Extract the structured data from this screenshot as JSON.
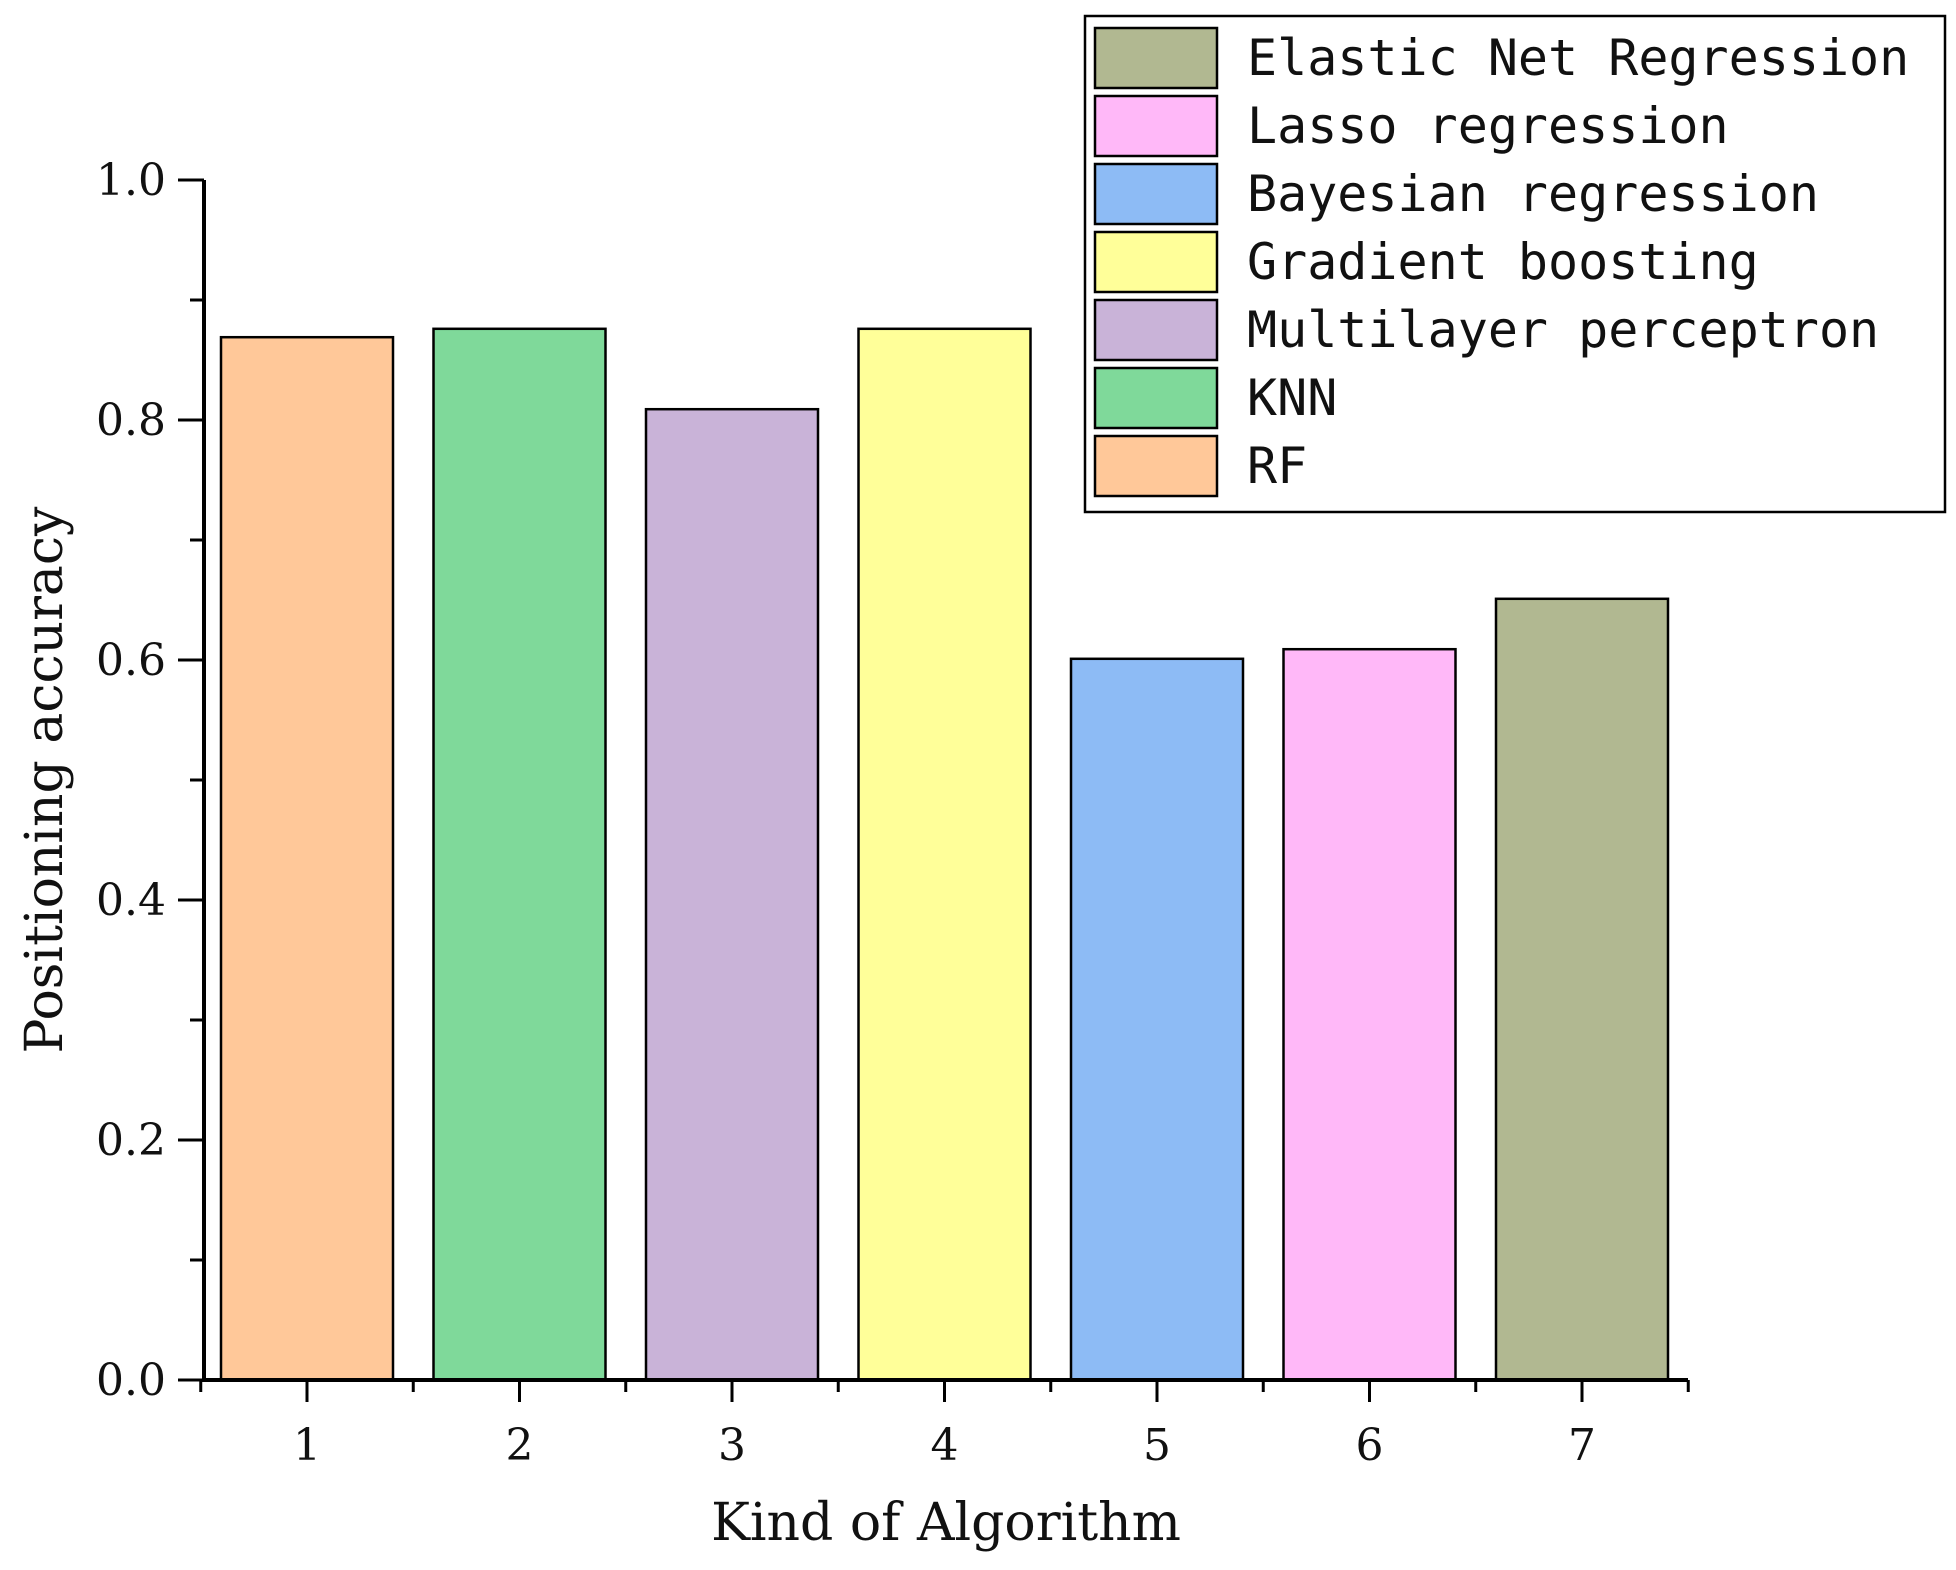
{
  "chart_data": {
    "type": "bar",
    "categories": [
      "1",
      "2",
      "3",
      "4",
      "5",
      "6",
      "7"
    ],
    "values": [
      0.869,
      0.876,
      0.809,
      0.876,
      0.601,
      0.609,
      0.651
    ],
    "bar_colors": [
      "#FFC899",
      "#7FD99A",
      "#C9B3D8",
      "#FFFF99",
      "#8DBBF5",
      "#FFB8F8",
      "#B1B891"
    ],
    "xlabel": "Kind of Algorithm",
    "ylabel": "Positioning accuracy",
    "ylim": [
      0,
      1.0
    ],
    "yticks": [
      "0.0",
      "0.2",
      "0.4",
      "0.6",
      "0.8",
      "1.0"
    ],
    "grid": false,
    "legend_position": "top-right",
    "legend": [
      {
        "label": "Elastic Net Regression",
        "color": "#B1B891"
      },
      {
        "label": "Lasso regression",
        "color": "#FFB8F8"
      },
      {
        "label": "Bayesian regression",
        "color": "#8DBBF5"
      },
      {
        "label": "Gradient boosting",
        "color": "#FFFF99"
      },
      {
        "label": "Multilayer perceptron",
        "color": "#C9B3D8"
      },
      {
        "label": "KNN",
        "color": "#7FD99A"
      },
      {
        "label": "RF",
        "color": "#FFC899"
      }
    ]
  }
}
